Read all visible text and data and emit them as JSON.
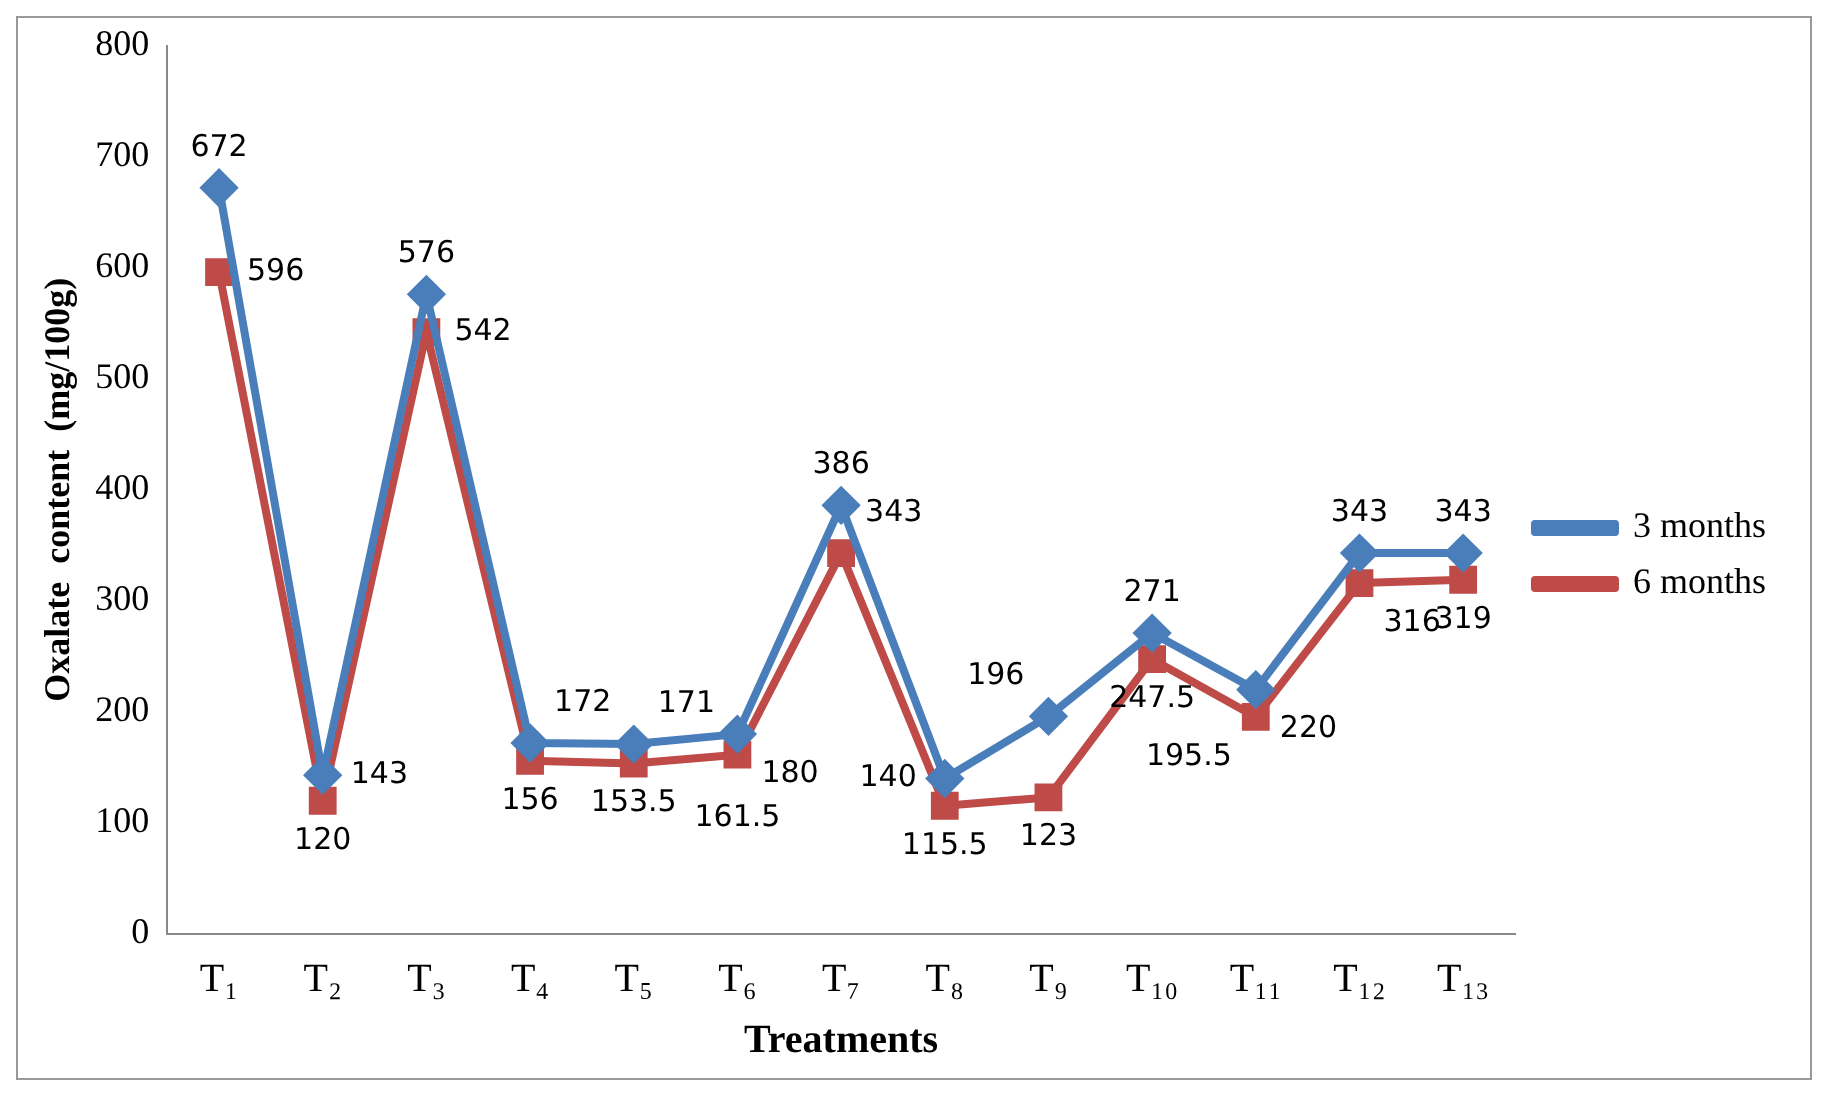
{
  "chart_data": {
    "type": "line",
    "xlabel": "Treatments",
    "ylabel": "Oxalate  content  (mg/100g)",
    "categories": [
      "T₁",
      "T₂",
      "T₃",
      "T₄",
      "T₅",
      "T₆",
      "T₇",
      "T₈",
      "T₉",
      "T₁₀",
      "T₁₁",
      "T₁₂",
      "T₁₃"
    ],
    "series": [
      {
        "name": "3 months",
        "color": "#4a7ebb",
        "marker": "diamond",
        "values": [
          672,
          143,
          576,
          172,
          171,
          180,
          386,
          140,
          196,
          271,
          220,
          343,
          343
        ]
      },
      {
        "name": "6 months",
        "color": "#be4b48",
        "marker": "square",
        "values": [
          596,
          120,
          542,
          156,
          153.5,
          161.5,
          343,
          115.5,
          123,
          247.5,
          195.5,
          316,
          319
        ]
      }
    ],
    "ylim": [
      0,
      800
    ],
    "yticks": [
      0,
      100,
      200,
      300,
      400,
      500,
      600,
      700,
      800
    ],
    "grid": false,
    "legend": "right",
    "data_labels": true
  }
}
